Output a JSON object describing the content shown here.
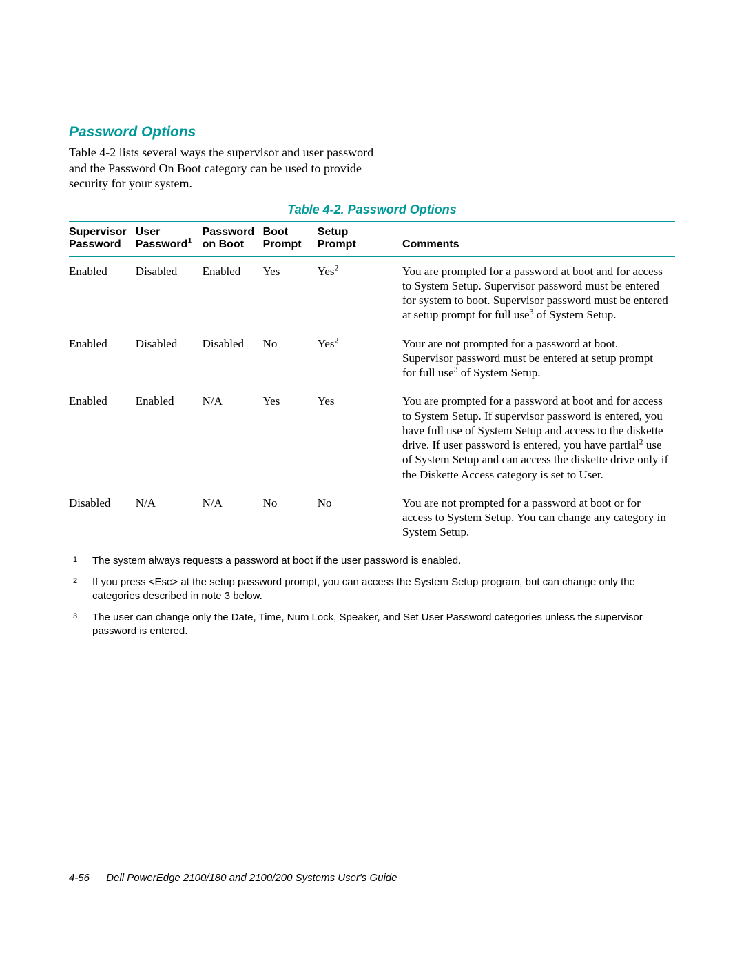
{
  "heading": "Password Options",
  "intro": "Table 4-2 lists several ways the supervisor and user password and the Password On Boot category can be used to provide security for your system.",
  "table": {
    "caption": "Table 4-2.  Password Options",
    "headers": {
      "supervisor_l1": "Supervisor",
      "supervisor_l2": "Password",
      "user_l1": "User",
      "user_l2": "Password",
      "user_sup": "1",
      "pob_l1": "Password",
      "pob_l2": "on Boot",
      "boot_l1": "Boot",
      "boot_l2": "Prompt",
      "setup_l1": "Setup",
      "setup_l2": "Prompt",
      "comments": "Comments"
    },
    "rows": [
      {
        "sup": "Enabled",
        "user": "Disabled",
        "pob": "Enabled",
        "boot": "Yes",
        "setup_pre": "Yes",
        "setup_sup": "2",
        "com_a": "You are prompted for a password at boot and for access to System Setup. Supervisor password must be entered for system to boot. Supervisor password must be entered at setup prompt for full use",
        "com_sup": "3",
        "com_b": " of System Setup."
      },
      {
        "sup": "Enabled",
        "user": "Disabled",
        "pob": "Disabled",
        "boot": "No",
        "setup_pre": "Yes",
        "setup_sup": "2",
        "com_a": "Your are not prompted for a password at boot. Supervisor password must be entered at setup prompt for full use",
        "com_sup": "3",
        "com_b": " of System Setup."
      },
      {
        "sup": "Enabled",
        "user": "Enabled",
        "pob": "N/A",
        "boot": "Yes",
        "setup_pre": "Yes",
        "setup_sup": "",
        "com_a": "You are prompted for a password at boot and for access to System Setup. If supervisor password is entered, you have full use of System Setup and access to the diskette drive. If user password is entered, you have partial",
        "com_sup": "2",
        "com_b": " use of System Setup and can access the diskette drive only if the Diskette Access category is set to User."
      },
      {
        "sup": "Disabled",
        "user": "N/A",
        "pob": "N/A",
        "boot": "No",
        "setup_pre": "No",
        "setup_sup": "",
        "com_a": "You are not prompted for a password at boot or for access to System Setup. You can change any category in System Setup.",
        "com_sup": "",
        "com_b": ""
      }
    ]
  },
  "footnotes": [
    {
      "num": "1",
      "text": "The system always requests a password at boot if the user password is enabled."
    },
    {
      "num": "2",
      "text": "If you press <Esc> at the setup password prompt, you can access the System Setup program, but can change only the categories described in note 3 below."
    },
    {
      "num": "3",
      "text": "The user can change only the Date, Time, Num Lock, Speaker, and Set User Password categories unless the supervisor password is entered."
    }
  ],
  "footer": {
    "pagenum": "4-56",
    "title": "Dell PowerEdge 2100/180 and 2100/200 Systems User's Guide"
  },
  "colors": {
    "accent": "#009999",
    "text": "#000000",
    "background": "#ffffff"
  }
}
